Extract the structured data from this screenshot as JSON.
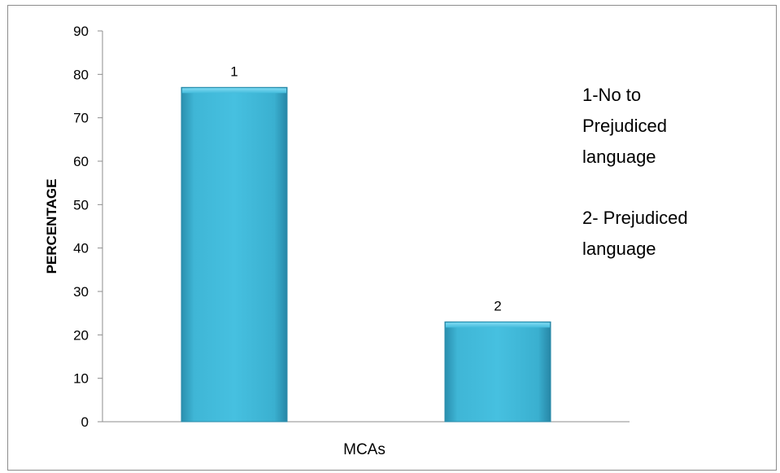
{
  "chart_data": {
    "type": "bar",
    "categories": [
      "1",
      "2"
    ],
    "values": [
      77,
      23
    ],
    "data_labels": [
      "1",
      "2"
    ],
    "ylabel": "PERCENTAGE",
    "xlabel": "MCAs",
    "ylim": [
      0,
      90
    ],
    "yticks": [
      "0",
      "10",
      "20",
      "30",
      "40",
      "50",
      "60",
      "70",
      "80",
      "90"
    ],
    "grid": false,
    "bar_color": "#3fb7d6",
    "annotations": [
      {
        "lines": [
          "1-No to",
          "Prejudiced",
          "language"
        ]
      },
      {
        "lines": [
          "2- Prejudiced",
          "language"
        ]
      }
    ]
  }
}
